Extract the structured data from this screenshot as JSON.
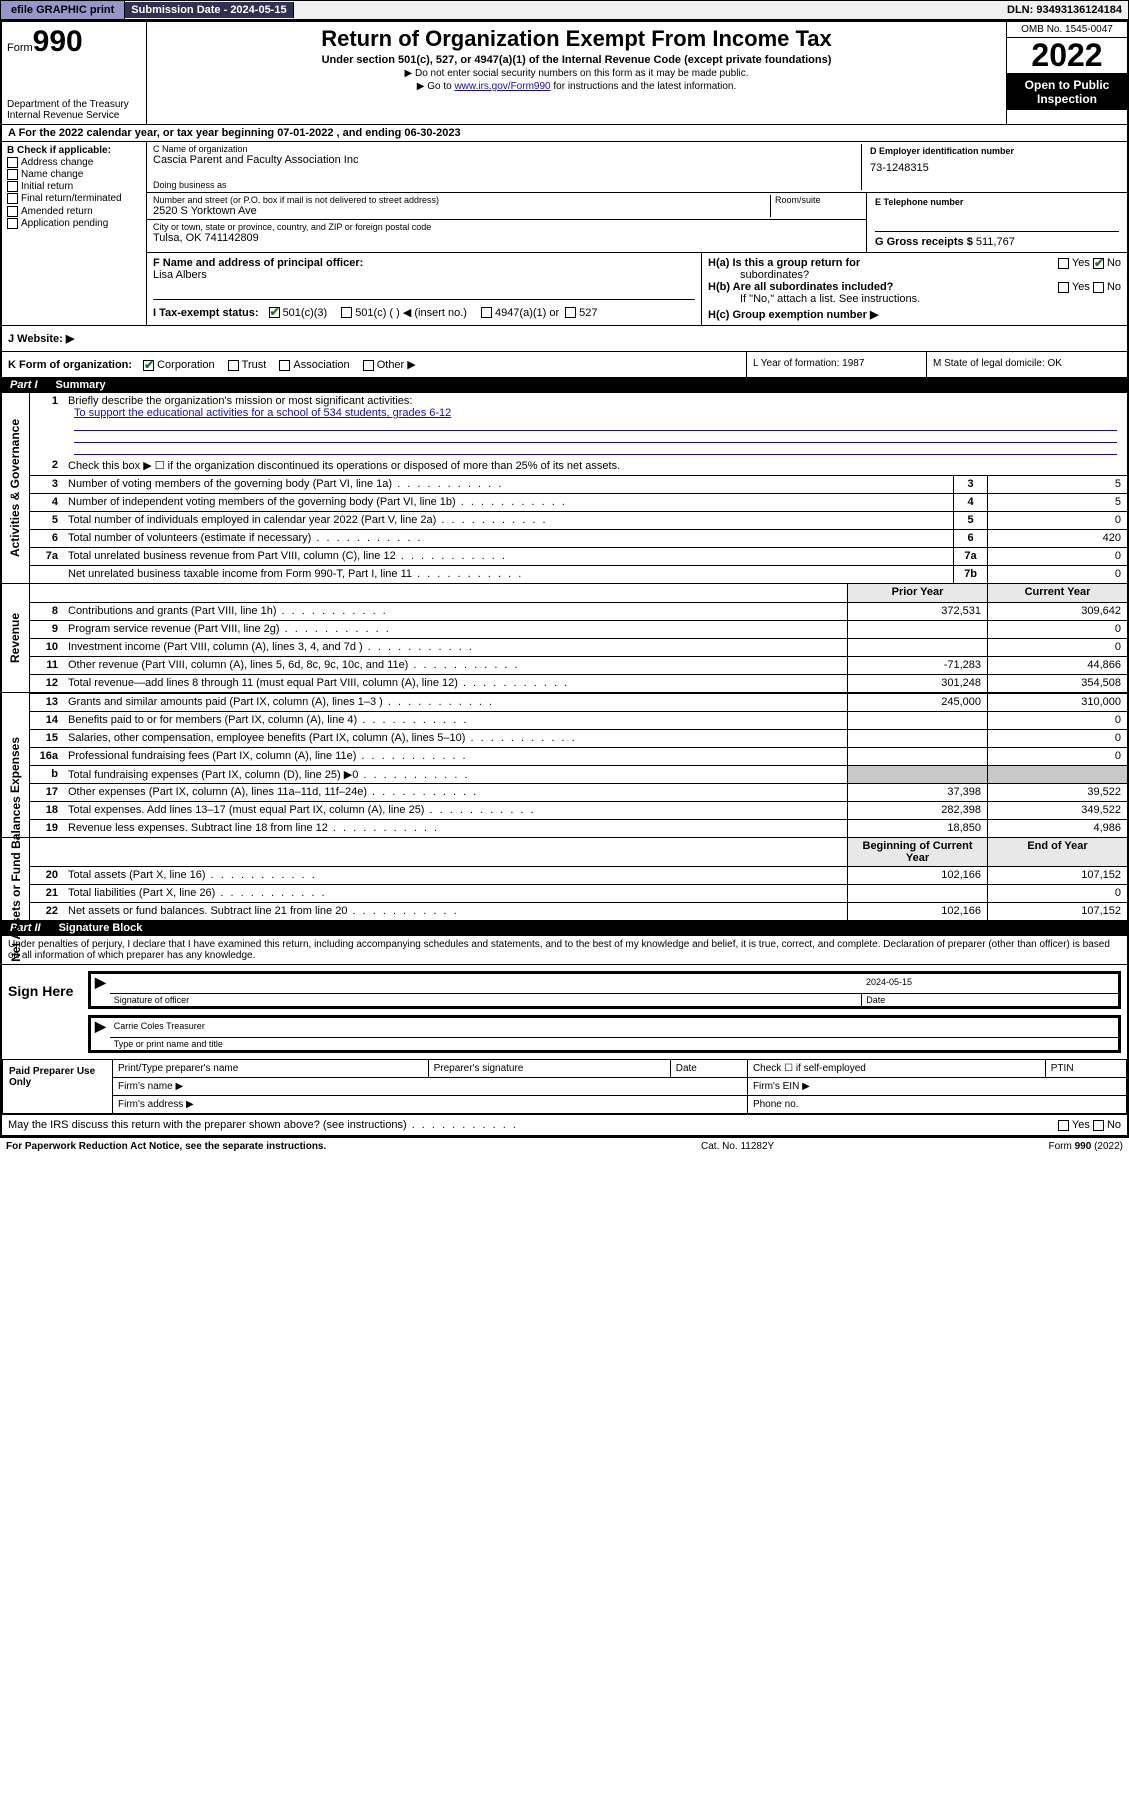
{
  "topbar": {
    "efile": "efile GRAPHIC print",
    "sub_label": "Submission Date - 2024-05-15",
    "dln": "DLN: 93493136124184"
  },
  "header": {
    "form_label": "Form",
    "form_num": "990",
    "dept": "Department of the Treasury Internal Revenue Service",
    "title": "Return of Organization Exempt From Income Tax",
    "sub": "Under section 501(c), 527, or 4947(a)(1) of the Internal Revenue Code (except private foundations)",
    "note1": "▶ Do not enter social security numbers on this form as it may be made public.",
    "note2_pre": "▶ Go to ",
    "note2_link": "www.irs.gov/Form990",
    "note2_post": " for instructions and the latest information.",
    "omb": "OMB No. 1545-0047",
    "year": "2022",
    "open": "Open to Public Inspection"
  },
  "rowA": "A  For the 2022 calendar year, or tax year beginning 07-01-2022    , and ending 06-30-2023",
  "colB": {
    "head": "B Check if applicable:",
    "items": [
      "Address change",
      "Name change",
      "Initial return",
      "Final return/terminated",
      "Amended return",
      "Application pending"
    ]
  },
  "colC": {
    "name_lbl": "C Name of organization",
    "name": "Cascia Parent and Faculty Association Inc",
    "dba_lbl": "Doing business as",
    "addr_lbl": "Number and street (or P.O. box if mail is not delivered to street address)",
    "room_lbl": "Room/suite",
    "addr": "2520 S Yorktown Ave",
    "city_lbl": "City or town, state or province, country, and ZIP or foreign postal code",
    "city": "Tulsa, OK  741142809"
  },
  "colD": {
    "lbl": "D Employer identification number",
    "val": "73-1248315"
  },
  "colE": {
    "lbl": "E Telephone number",
    "val": ""
  },
  "colG": {
    "lbl": "G Gross receipts $",
    "val": "511,767"
  },
  "rowF": {
    "lbl": "F  Name and address of principal officer:",
    "name": "Lisa Albers"
  },
  "rowH": {
    "ha": "H(a)  Is this a group return for",
    "ha2": "subordinates?",
    "hb": "H(b)  Are all subordinates included?",
    "hb_note": "If \"No,\" attach a list. See instructions.",
    "hc": "H(c)  Group exemption number ▶",
    "yes": "Yes",
    "no": "No"
  },
  "rowI": {
    "lbl": "I    Tax-exempt status:",
    "o1": "501(c)(3)",
    "o2": "501(c) (   ) ◀ (insert no.)",
    "o3": "4947(a)(1) or",
    "o4": "527"
  },
  "rowJ": {
    "lbl": "J   Website: ▶"
  },
  "rowK": {
    "lbl": "K Form of organization:",
    "o1": "Corporation",
    "o2": "Trust",
    "o3": "Association",
    "o4": "Other ▶"
  },
  "rowL": "L Year of formation: 1987",
  "rowM": "M State of legal domicile: OK",
  "part1": {
    "name": "Part I",
    "title": "Summary"
  },
  "summary": {
    "l1_lbl": "Briefly describe the organization's mission or most significant activities:",
    "l1_text": "To support the educational activities for a school of 534 students, grades 6-12",
    "l2": "Check this box ▶ ☐  if the organization discontinued its operations or disposed of more than 25% of its net assets.",
    "rows_ag": [
      {
        "n": "3",
        "d": "Number of voting members of the governing body (Part VI, line 1a)",
        "box": "3",
        "v": "5"
      },
      {
        "n": "4",
        "d": "Number of independent voting members of the governing body (Part VI, line 1b)",
        "box": "4",
        "v": "5"
      },
      {
        "n": "5",
        "d": "Total number of individuals employed in calendar year 2022 (Part V, line 2a)",
        "box": "5",
        "v": "0"
      },
      {
        "n": "6",
        "d": "Total number of volunteers (estimate if necessary)",
        "box": "6",
        "v": "420"
      },
      {
        "n": "7a",
        "d": "Total unrelated business revenue from Part VIII, column (C), line 12",
        "box": "7a",
        "v": "0"
      },
      {
        "n": "",
        "d": "Net unrelated business taxable income from Form 990-T, Part I, line 11",
        "box": "7b",
        "v": "0"
      }
    ],
    "prior_hdr": "Prior Year",
    "curr_hdr": "Current Year",
    "rows_rev": [
      {
        "n": "8",
        "d": "Contributions and grants (Part VIII, line 1h)",
        "p": "372,531",
        "c": "309,642"
      },
      {
        "n": "9",
        "d": "Program service revenue (Part VIII, line 2g)",
        "p": "",
        "c": "0"
      },
      {
        "n": "10",
        "d": "Investment income (Part VIII, column (A), lines 3, 4, and 7d )",
        "p": "",
        "c": "0"
      },
      {
        "n": "11",
        "d": "Other revenue (Part VIII, column (A), lines 5, 6d, 8c, 9c, 10c, and 11e)",
        "p": "-71,283",
        "c": "44,866"
      },
      {
        "n": "12",
        "d": "Total revenue—add lines 8 through 11 (must equal Part VIII, column (A), line 12)",
        "p": "301,248",
        "c": "354,508"
      }
    ],
    "rows_exp": [
      {
        "n": "13",
        "d": "Grants and similar amounts paid (Part IX, column (A), lines 1–3 )",
        "p": "245,000",
        "c": "310,000"
      },
      {
        "n": "14",
        "d": "Benefits paid to or for members (Part IX, column (A), line 4)",
        "p": "",
        "c": "0"
      },
      {
        "n": "15",
        "d": "Salaries, other compensation, employee benefits (Part IX, column (A), lines 5–10)",
        "p": "",
        "c": "0"
      },
      {
        "n": "16a",
        "d": "Professional fundraising fees (Part IX, column (A), line 11e)",
        "p": "",
        "c": "0"
      },
      {
        "n": "b",
        "d": "Total fundraising expenses (Part IX, column (D), line 25) ▶0",
        "p": "GREY",
        "c": "GREY"
      },
      {
        "n": "17",
        "d": "Other expenses (Part IX, column (A), lines 11a–11d, 11f–24e)",
        "p": "37,398",
        "c": "39,522"
      },
      {
        "n": "18",
        "d": "Total expenses. Add lines 13–17 (must equal Part IX, column (A), line 25)",
        "p": "282,398",
        "c": "349,522"
      },
      {
        "n": "19",
        "d": "Revenue less expenses. Subtract line 18 from line 12",
        "p": "18,850",
        "c": "4,986"
      }
    ],
    "beg_hdr": "Beginning of Current Year",
    "end_hdr": "End of Year",
    "rows_na": [
      {
        "n": "20",
        "d": "Total assets (Part X, line 16)",
        "p": "102,166",
        "c": "107,152"
      },
      {
        "n": "21",
        "d": "Total liabilities (Part X, line 26)",
        "p": "",
        "c": "0"
      },
      {
        "n": "22",
        "d": "Net assets or fund balances. Subtract line 21 from line 20",
        "p": "102,166",
        "c": "107,152"
      }
    ],
    "side_ag": "Activities & Governance",
    "side_rev": "Revenue",
    "side_exp": "Expenses",
    "side_na": "Net Assets or Fund Balances"
  },
  "part2": {
    "name": "Part II",
    "title": "Signature Block"
  },
  "sig": {
    "decl": "Under penalties of perjury, I declare that I have examined this return, including accompanying schedules and statements, and to the best of my knowledge and belief, it is true, correct, and complete. Declaration of preparer (other than officer) is based on all information of which preparer has any knowledge.",
    "sign_here": "Sign Here",
    "off_sig": "Signature of officer",
    "date_lbl": "Date",
    "date": "2024-05-15",
    "name": "Carrie Coles  Treasurer",
    "name_lbl": "Type or print name and title"
  },
  "prep": {
    "title": "Paid Preparer Use Only",
    "h1": "Print/Type preparer's name",
    "h2": "Preparer's signature",
    "h3": "Date",
    "h4": "Check ☐ if self-employed",
    "h5": "PTIN",
    "fn": "Firm's name  ▶",
    "fein": "Firm's EIN ▶",
    "fa": "Firm's address ▶",
    "fph": "Phone no."
  },
  "bottom": {
    "q": "May the IRS discuss this return with the preparer shown above? (see instructions)",
    "yes": "Yes",
    "no": "No",
    "pra": "For Paperwork Reduction Act Notice, see the separate instructions.",
    "cat": "Cat. No. 11282Y",
    "form": "Form 990 (2022)"
  },
  "colors": {
    "link": "#1a0dab",
    "topbtn": "#9696c8",
    "darkbar": "#303050",
    "grey": "#c8c8c8",
    "check": "#2a6e2a"
  }
}
